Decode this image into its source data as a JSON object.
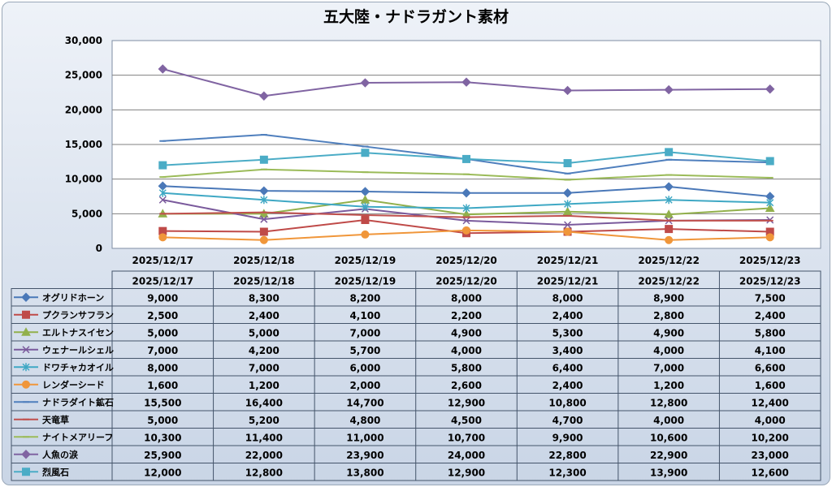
{
  "chart_data": {
    "type": "line",
    "title": "五大陸・ナドラガント素材",
    "xlabel": "",
    "ylabel": "",
    "ylim": [
      0,
      30000
    ],
    "yticks": [
      "0",
      "5,000",
      "10,000",
      "15,000",
      "20,000",
      "25,000",
      "30,000"
    ],
    "grid": true,
    "legend": "data-table-left",
    "categories": [
      "2025/12/17",
      "2025/12/18",
      "2025/12/19",
      "2025/12/20",
      "2025/12/21",
      "2025/12/22",
      "2025/12/23"
    ],
    "series": [
      {
        "name": "オグリドホーン",
        "color": "#4a78b8",
        "marker": "diamond",
        "values": [
          9000,
          8300,
          8200,
          8000,
          8000,
          8900,
          7500
        ]
      },
      {
        "name": "プクランサフラン",
        "color": "#bf4a48",
        "marker": "square",
        "values": [
          2500,
          2400,
          4100,
          2200,
          2400,
          2800,
          2400
        ]
      },
      {
        "name": "エルトナスイセン",
        "color": "#92b04c",
        "marker": "triangle",
        "values": [
          5000,
          5000,
          7000,
          4900,
          5300,
          4900,
          5800
        ]
      },
      {
        "name": "ウェナールシェル",
        "color": "#7a5a9c",
        "marker": "x",
        "values": [
          7000,
          4200,
          5700,
          4000,
          3400,
          4000,
          4100
        ]
      },
      {
        "name": "ドワチャカオイル",
        "color": "#3fa8c4",
        "marker": "star",
        "values": [
          8000,
          7000,
          6000,
          5800,
          6400,
          7000,
          6600
        ]
      },
      {
        "name": "レンダーシード",
        "color": "#f0963a",
        "marker": "circle",
        "values": [
          1600,
          1200,
          2000,
          2600,
          2400,
          1200,
          1600
        ]
      },
      {
        "name": "ナドラダイト鉱石",
        "color": "#4f7fbd",
        "marker": "dash",
        "values": [
          15500,
          16400,
          14700,
          12900,
          10800,
          12800,
          12400
        ]
      },
      {
        "name": "天竜草",
        "color": "#c0504d",
        "marker": "dash",
        "values": [
          5000,
          5200,
          4800,
          4500,
          4700,
          4000,
          4000
        ]
      },
      {
        "name": "ナイトメアリーフ",
        "color": "#9bbb59",
        "marker": "dash",
        "values": [
          10300,
          11400,
          11000,
          10700,
          9900,
          10600,
          10200
        ]
      },
      {
        "name": "人魚の涙",
        "color": "#8064a2",
        "marker": "diamond",
        "values": [
          25900,
          22000,
          23900,
          24000,
          22800,
          22900,
          23000
        ]
      },
      {
        "name": "烈風石",
        "color": "#4bacc6",
        "marker": "square",
        "values": [
          12000,
          12800,
          13800,
          12900,
          12300,
          13900,
          12600
        ]
      }
    ]
  }
}
